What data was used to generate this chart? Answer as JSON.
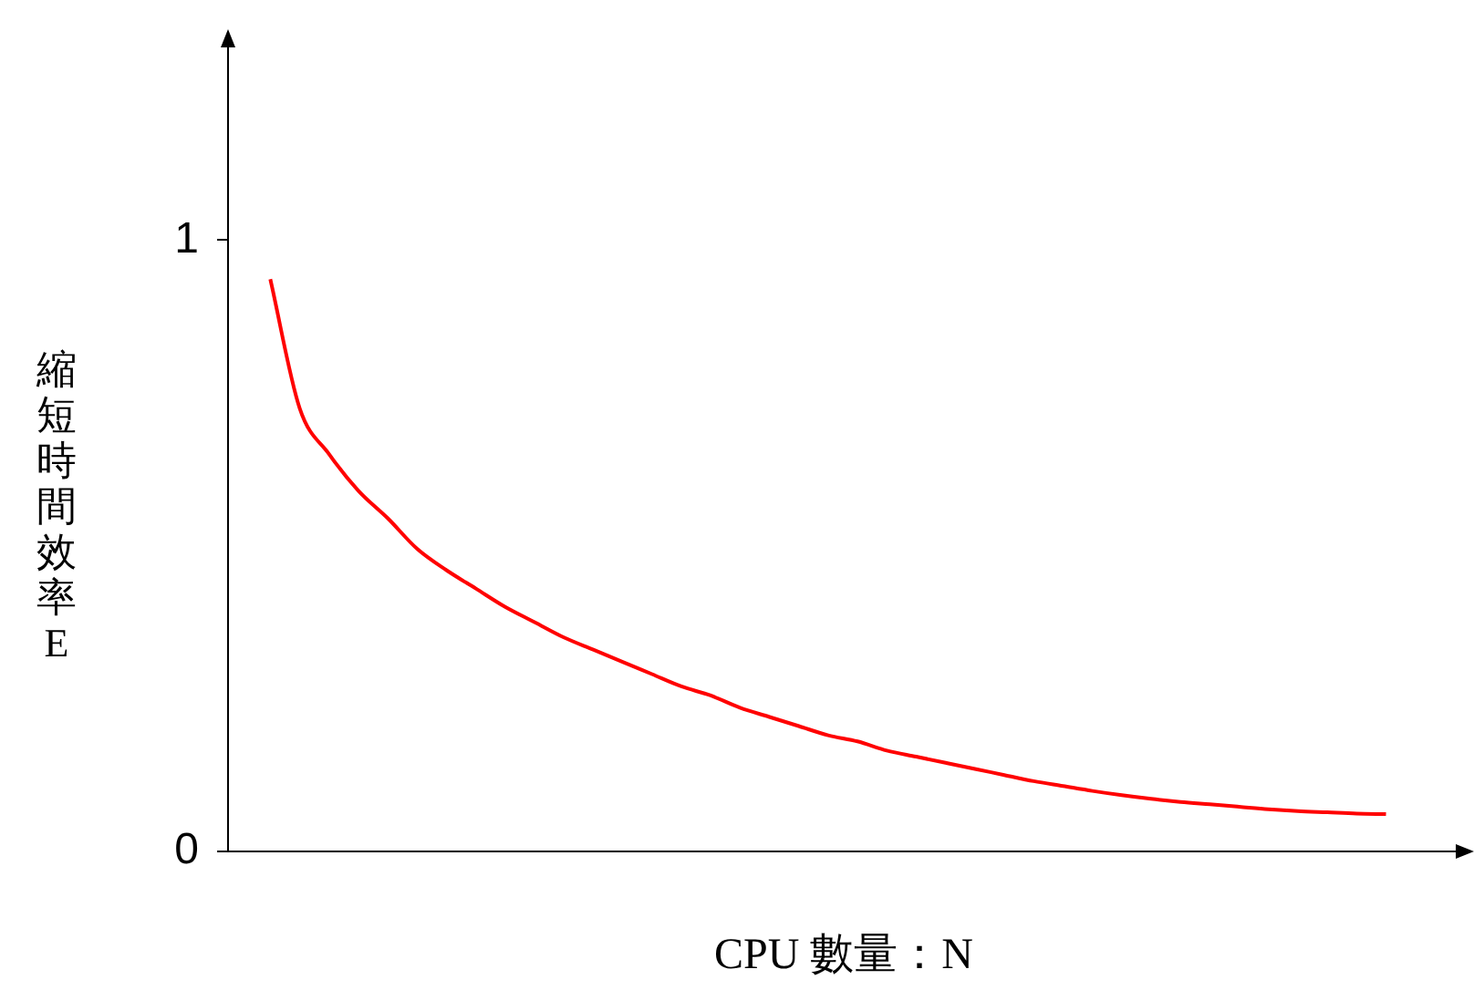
{
  "chart_data": {
    "type": "line",
    "xlabel": "CPU 數量：N",
    "ylabel": "縮短時間效率E",
    "categories": [
      null,
      null,
      null,
      null,
      null,
      null,
      null,
      null,
      null,
      null,
      null,
      null,
      null,
      null,
      null,
      null,
      null,
      null,
      null,
      null,
      null,
      null,
      null,
      null,
      null,
      null,
      null,
      null,
      null,
      null,
      null,
      null,
      null,
      null,
      null,
      null,
      null,
      null,
      null
    ],
    "series": [
      {
        "color": "#ff0000",
        "values": [
          0.936,
          0.725,
          0.65,
          0.59,
          0.545,
          0.495,
          0.46,
          0.43,
          0.4,
          0.375,
          0.35,
          0.33,
          0.31,
          0.29,
          0.27,
          0.255,
          0.235,
          0.22,
          0.205,
          0.19,
          0.18,
          0.165,
          0.155,
          0.145,
          0.135,
          0.125,
          0.115,
          0.107,
          0.099,
          0.092,
          0.086,
          0.081,
          0.077,
          0.073,
          0.069,
          0.066,
          0.064,
          0.062,
          0.061
        ]
      }
    ],
    "ylim": [
      0,
      1.32
    ],
    "yticks": [
      0,
      1
    ],
    "grid": false,
    "legend": false,
    "tick_labels": "y",
    "marker": "none",
    "line_style": "solid"
  }
}
